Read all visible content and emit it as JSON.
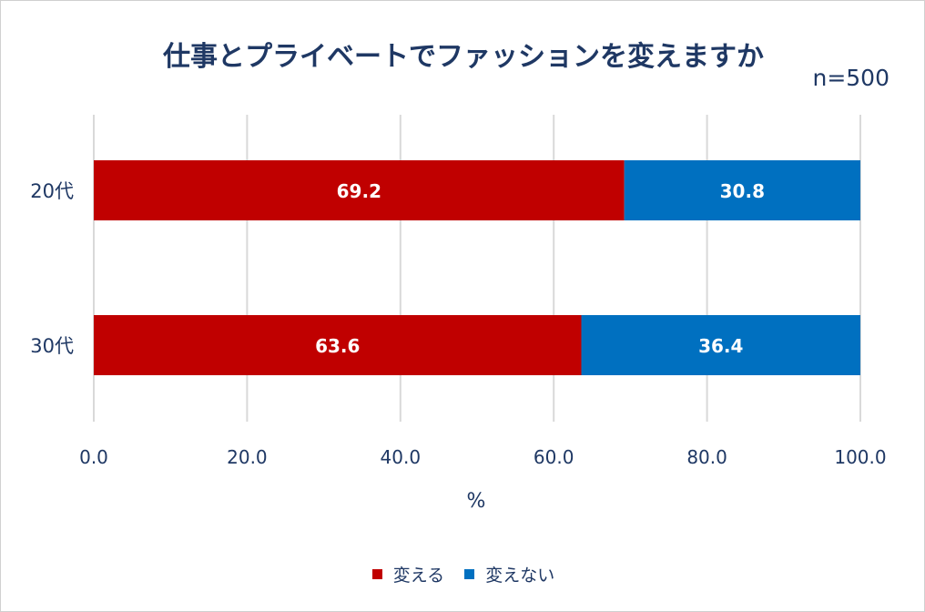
{
  "chart_data": {
    "type": "bar",
    "orientation": "horizontal",
    "stacked": true,
    "title": "仕事とプライベートでファッションを変えますか",
    "sample_size": "n=500",
    "xlabel": "%",
    "ylabel": "",
    "xlim": [
      0,
      100
    ],
    "x_ticks": [
      "0.0",
      "20.0",
      "40.0",
      "60.0",
      "80.0",
      "100.0"
    ],
    "categories": [
      "20代",
      "30代"
    ],
    "series": [
      {
        "name": "変える",
        "color": "#c00000",
        "values": [
          69.2,
          63.6
        ],
        "labels": [
          "69.2",
          "63.6"
        ]
      },
      {
        "name": "変えない",
        "color": "#0070c0",
        "values": [
          30.8,
          36.4
        ],
        "labels": [
          "30.8",
          "36.4"
        ]
      }
    ],
    "grid": true,
    "legend_position": "bottom"
  }
}
